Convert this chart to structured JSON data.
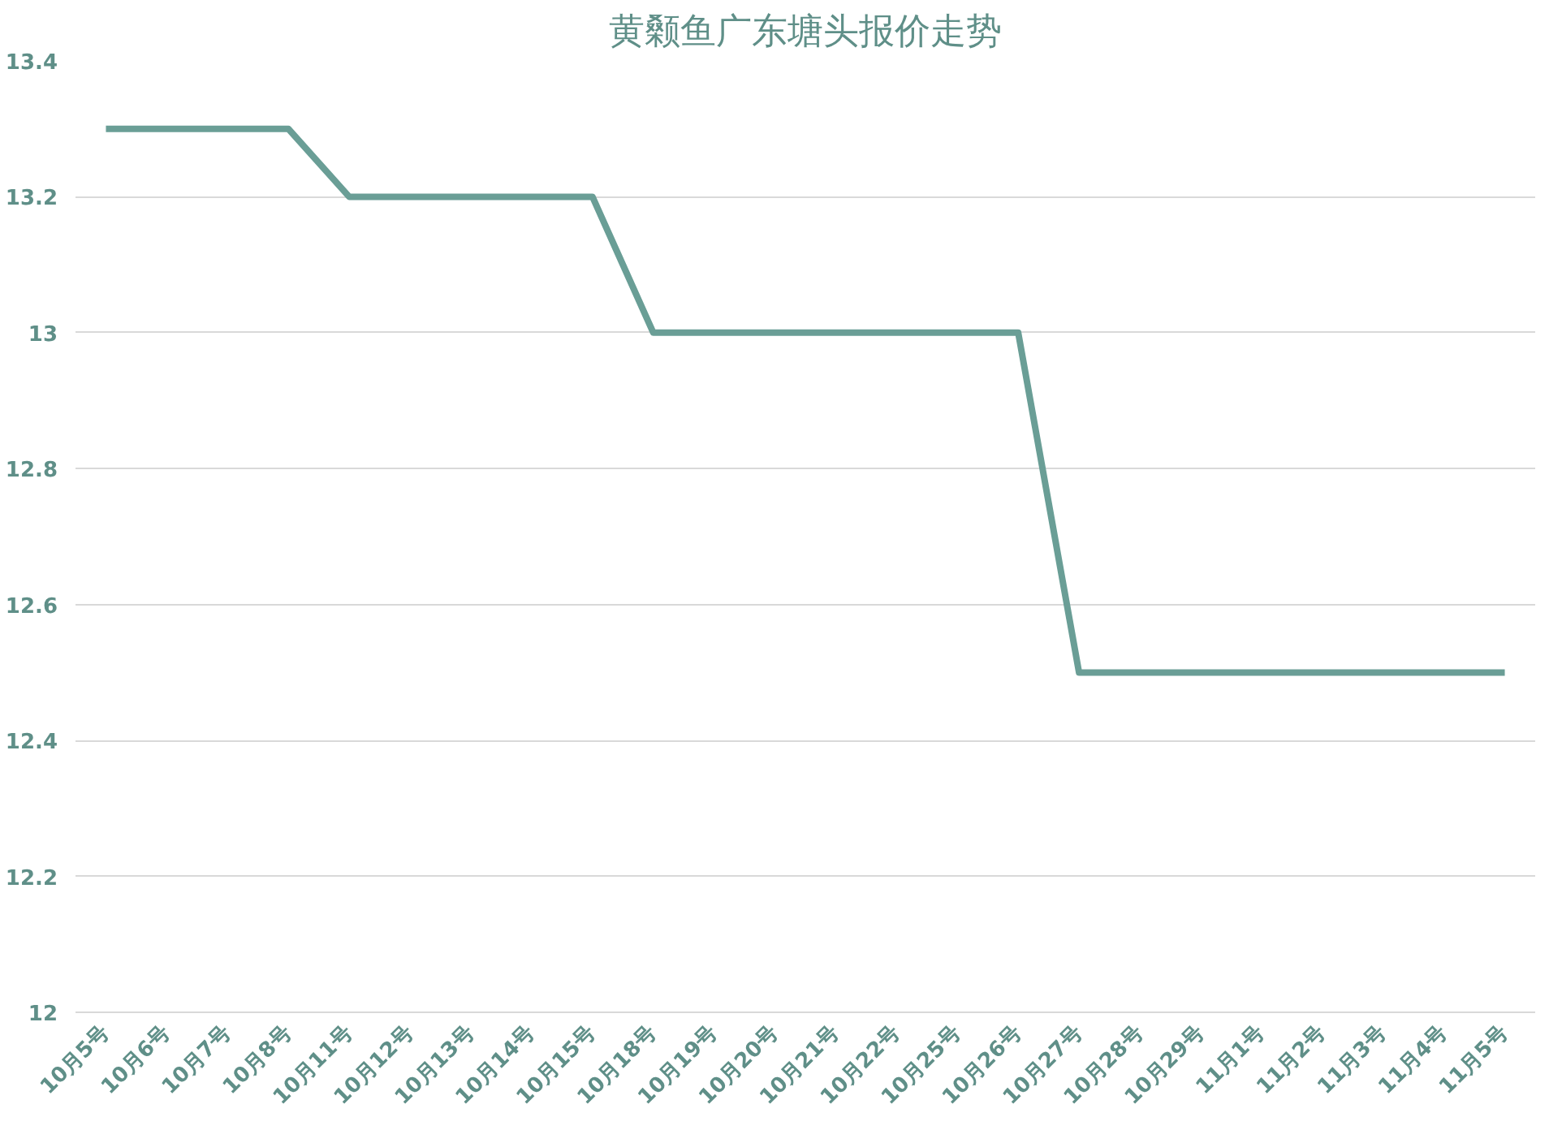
{
  "chart_data": {
    "type": "line",
    "title": "黄颡鱼广东塘头报价走势",
    "categories": [
      "10月5号",
      "10月6号",
      "10月7号",
      "10月8号",
      "10月11号",
      "10月12号",
      "10月13号",
      "10月14号",
      "10月15号",
      "10月18号",
      "10月19号",
      "10月20号",
      "10月21号",
      "10月22号",
      "10月25号",
      "10月26号",
      "10月27号",
      "10月28号",
      "10月29号",
      "11月1号",
      "11月2号",
      "11月3号",
      "11月4号",
      "11月5号"
    ],
    "series": [
      {
        "color": "#6a9e96",
        "values": [
          13.3,
          13.3,
          13.3,
          13.3,
          13.2,
          13.2,
          13.2,
          13.2,
          13.2,
          13.0,
          13.0,
          13.0,
          13.0,
          13.0,
          13.0,
          13.0,
          12.5,
          12.5,
          12.5,
          12.5,
          12.5,
          12.5,
          12.5,
          12.5
        ]
      }
    ],
    "ylim": [
      12,
      13.4
    ],
    "yticks": [
      12,
      12.2,
      12.4,
      12.6,
      12.8,
      13,
      13.2,
      13.4
    ],
    "grid": "y",
    "marker": "none",
    "line_style": "solid"
  }
}
